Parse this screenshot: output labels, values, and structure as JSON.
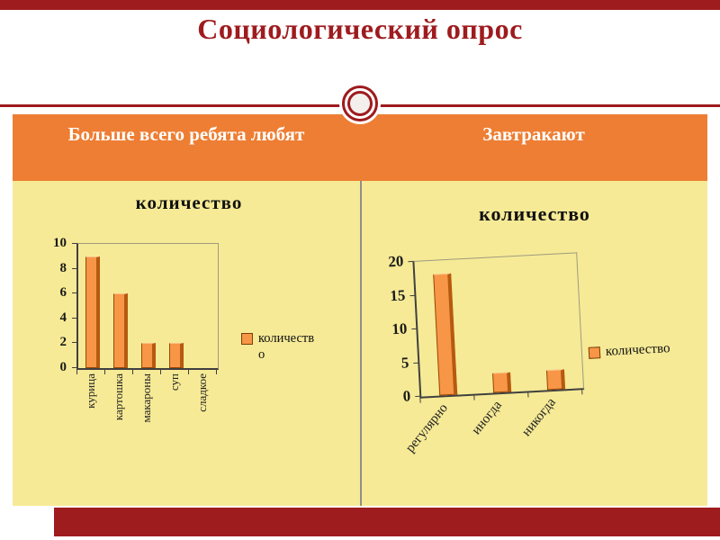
{
  "slide": {
    "title": "Социологический опрос",
    "left_header": "Больше всего ребята любят",
    "right_header": "Завтракают"
  },
  "colors": {
    "maroon": "#9E1B1E",
    "band_orange": "#EE7E33",
    "panel_yellow": "#F6EA96",
    "bar_orange": "#F79646",
    "bar_border": "#974806",
    "text_dark": "#1a1a1a",
    "header_text": "#FFFFFF"
  },
  "chart_data": [
    {
      "type": "bar",
      "title": "количество",
      "categories": [
        "курица",
        "картошка",
        "макароны",
        "суп",
        "сладкое"
      ],
      "values": [
        9,
        6,
        2,
        2,
        0
      ],
      "series_name": "количество",
      "legend": [
        "количество"
      ],
      "xlabel": "",
      "ylabel": "",
      "ylim": [
        0,
        10
      ],
      "yticks": [
        0,
        2,
        4,
        6,
        8,
        10
      ],
      "legend_position": "right",
      "grid": false
    },
    {
      "type": "bar",
      "title": "количество",
      "categories": [
        "регулярно",
        "иногда",
        "никогда"
      ],
      "values": [
        18,
        3,
        3
      ],
      "series_name": "количество",
      "legend": [
        "количество"
      ],
      "xlabel": "",
      "ylabel": "",
      "ylim": [
        0,
        20
      ],
      "yticks": [
        0,
        5,
        10,
        15,
        20
      ],
      "legend_position": "right",
      "grid": false
    }
  ]
}
